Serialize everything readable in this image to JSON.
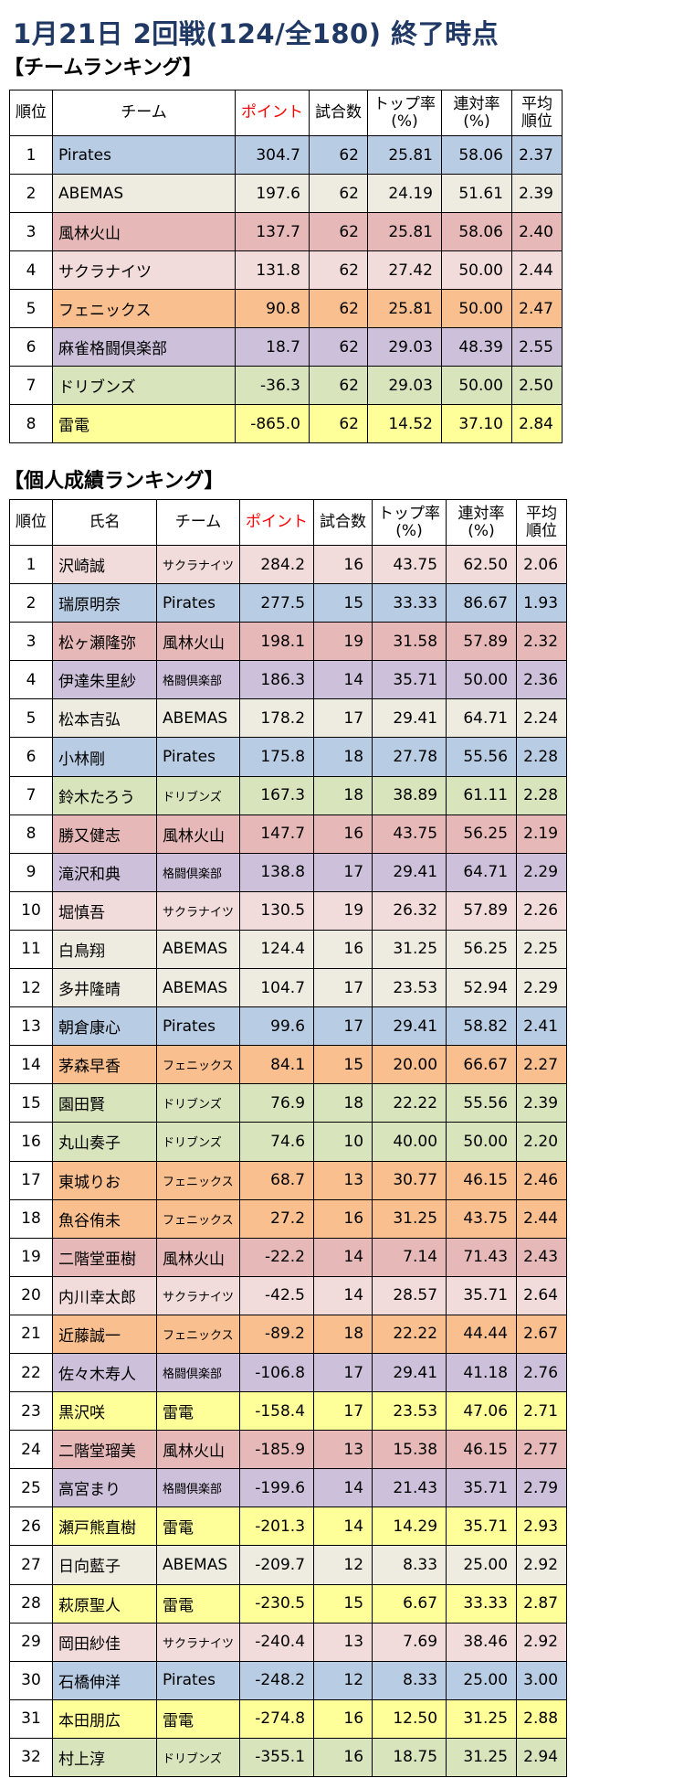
{
  "title": "1月21日 2回戦(124/全180) 終了時点",
  "team_section_label": "【チームランキング】",
  "player_section_label": "【個人成績ランキング】",
  "team_headers": [
    "順位",
    "チーム",
    "ポイント",
    "試合数",
    "トップ率\n(%)",
    "連対率\n(%)",
    "平均\n順位"
  ],
  "player_headers": [
    "順位",
    "氏名",
    "チーム",
    "ポイント",
    "試合数",
    "トップ率\n(%)",
    "連対率\n(%)",
    "平均\n順位"
  ],
  "team_colors": {
    "pirates": "#b8cce4",
    "abemas": "#eeece1",
    "furin": "#e6b8b7",
    "sakura": "#f2dcdb",
    "phoenix": "#fabf8f",
    "kakuto": "#ccc0da",
    "drib": "#d8e4bc",
    "raiden": "#ffff99"
  },
  "teams": [
    {
      "rank": "1",
      "team": "Pirates",
      "points": "304.7",
      "games": "62",
      "top": "25.81",
      "rentai": "58.06",
      "avg": "2.37",
      "color": "pirates"
    },
    {
      "rank": "2",
      "team": "ABEMAS",
      "points": "197.6",
      "games": "62",
      "top": "24.19",
      "rentai": "51.61",
      "avg": "2.39",
      "color": "abemas"
    },
    {
      "rank": "3",
      "team": "風林火山",
      "points": "137.7",
      "games": "62",
      "top": "25.81",
      "rentai": "58.06",
      "avg": "2.40",
      "color": "furin"
    },
    {
      "rank": "4",
      "team": "サクラナイツ",
      "points": "131.8",
      "games": "62",
      "top": "27.42",
      "rentai": "50.00",
      "avg": "2.44",
      "color": "sakura"
    },
    {
      "rank": "5",
      "team": "フェニックス",
      "points": "90.8",
      "games": "62",
      "top": "25.81",
      "rentai": "50.00",
      "avg": "2.47",
      "color": "phoenix"
    },
    {
      "rank": "6",
      "team": "麻雀格闘倶楽部",
      "points": "18.7",
      "games": "62",
      "top": "29.03",
      "rentai": "48.39",
      "avg": "2.55",
      "color": "kakuto"
    },
    {
      "rank": "7",
      "team": "ドリブンズ",
      "points": "-36.3",
      "games": "62",
      "top": "29.03",
      "rentai": "50.00",
      "avg": "2.50",
      "color": "drib"
    },
    {
      "rank": "8",
      "team": "雷電",
      "points": "-865.0",
      "games": "62",
      "top": "14.52",
      "rentai": "37.10",
      "avg": "2.84",
      "color": "raiden"
    }
  ],
  "players": [
    {
      "rank": "1",
      "name": "沢崎誠",
      "team": "サクラナイツ",
      "points": "284.2",
      "games": "16",
      "top": "43.75",
      "rentai": "62.50",
      "avg": "2.06",
      "color": "sakura"
    },
    {
      "rank": "2",
      "name": "瑞原明奈",
      "team": "Pirates",
      "points": "277.5",
      "games": "15",
      "top": "33.33",
      "rentai": "86.67",
      "avg": "1.93",
      "color": "pirates"
    },
    {
      "rank": "3",
      "name": "松ヶ瀬隆弥",
      "team": "風林火山",
      "points": "198.1",
      "games": "19",
      "top": "31.58",
      "rentai": "57.89",
      "avg": "2.32",
      "color": "furin"
    },
    {
      "rank": "4",
      "name": "伊達朱里紗",
      "team": "格闘倶楽部",
      "points": "186.3",
      "games": "14",
      "top": "35.71",
      "rentai": "50.00",
      "avg": "2.36",
      "color": "kakuto"
    },
    {
      "rank": "5",
      "name": "松本吉弘",
      "team": "ABEMAS",
      "points": "178.2",
      "games": "17",
      "top": "29.41",
      "rentai": "64.71",
      "avg": "2.24",
      "color": "abemas"
    },
    {
      "rank": "6",
      "name": "小林剛",
      "team": "Pirates",
      "points": "175.8",
      "games": "18",
      "top": "27.78",
      "rentai": "55.56",
      "avg": "2.28",
      "color": "pirates"
    },
    {
      "rank": "7",
      "name": "鈴木たろう",
      "team": "ドリブンズ",
      "points": "167.3",
      "games": "18",
      "top": "38.89",
      "rentai": "61.11",
      "avg": "2.28",
      "color": "drib"
    },
    {
      "rank": "8",
      "name": "勝又健志",
      "team": "風林火山",
      "points": "147.7",
      "games": "16",
      "top": "43.75",
      "rentai": "56.25",
      "avg": "2.19",
      "color": "furin"
    },
    {
      "rank": "9",
      "name": "滝沢和典",
      "team": "格闘倶楽部",
      "points": "138.8",
      "games": "17",
      "top": "29.41",
      "rentai": "64.71",
      "avg": "2.29",
      "color": "kakuto"
    },
    {
      "rank": "10",
      "name": "堀慎吾",
      "team": "サクラナイツ",
      "points": "130.5",
      "games": "19",
      "top": "26.32",
      "rentai": "57.89",
      "avg": "2.26",
      "color": "sakura"
    },
    {
      "rank": "11",
      "name": "白鳥翔",
      "team": "ABEMAS",
      "points": "124.4",
      "games": "16",
      "top": "31.25",
      "rentai": "56.25",
      "avg": "2.25",
      "color": "abemas"
    },
    {
      "rank": "12",
      "name": "多井隆晴",
      "team": "ABEMAS",
      "points": "104.7",
      "games": "17",
      "top": "23.53",
      "rentai": "52.94",
      "avg": "2.29",
      "color": "abemas"
    },
    {
      "rank": "13",
      "name": "朝倉康心",
      "team": "Pirates",
      "points": "99.6",
      "games": "17",
      "top": "29.41",
      "rentai": "58.82",
      "avg": "2.41",
      "color": "pirates"
    },
    {
      "rank": "14",
      "name": "茅森早香",
      "team": "フェニックス",
      "points": "84.1",
      "games": "15",
      "top": "20.00",
      "rentai": "66.67",
      "avg": "2.27",
      "color": "phoenix"
    },
    {
      "rank": "15",
      "name": "園田賢",
      "team": "ドリブンズ",
      "points": "76.9",
      "games": "18",
      "top": "22.22",
      "rentai": "55.56",
      "avg": "2.39",
      "color": "drib"
    },
    {
      "rank": "16",
      "name": "丸山奏子",
      "team": "ドリブンズ",
      "points": "74.6",
      "games": "10",
      "top": "40.00",
      "rentai": "50.00",
      "avg": "2.20",
      "color": "drib"
    },
    {
      "rank": "17",
      "name": "東城りお",
      "team": "フェニックス",
      "points": "68.7",
      "games": "13",
      "top": "30.77",
      "rentai": "46.15",
      "avg": "2.46",
      "color": "phoenix"
    },
    {
      "rank": "18",
      "name": "魚谷侑未",
      "team": "フェニックス",
      "points": "27.2",
      "games": "16",
      "top": "31.25",
      "rentai": "43.75",
      "avg": "2.44",
      "color": "phoenix"
    },
    {
      "rank": "19",
      "name": "二階堂亜樹",
      "team": "風林火山",
      "points": "-22.2",
      "games": "14",
      "top": "7.14",
      "rentai": "71.43",
      "avg": "2.43",
      "color": "furin"
    },
    {
      "rank": "20",
      "name": "内川幸太郎",
      "team": "サクラナイツ",
      "points": "-42.5",
      "games": "14",
      "top": "28.57",
      "rentai": "35.71",
      "avg": "2.64",
      "color": "sakura"
    },
    {
      "rank": "21",
      "name": "近藤誠一",
      "team": "フェニックス",
      "points": "-89.2",
      "games": "18",
      "top": "22.22",
      "rentai": "44.44",
      "avg": "2.67",
      "color": "phoenix"
    },
    {
      "rank": "22",
      "name": "佐々木寿人",
      "team": "格闘倶楽部",
      "points": "-106.8",
      "games": "17",
      "top": "29.41",
      "rentai": "41.18",
      "avg": "2.76",
      "color": "kakuto"
    },
    {
      "rank": "23",
      "name": "黒沢咲",
      "team": "雷電",
      "points": "-158.4",
      "games": "17",
      "top": "23.53",
      "rentai": "47.06",
      "avg": "2.71",
      "color": "raiden"
    },
    {
      "rank": "24",
      "name": "二階堂瑠美",
      "team": "風林火山",
      "points": "-185.9",
      "games": "13",
      "top": "15.38",
      "rentai": "46.15",
      "avg": "2.77",
      "color": "furin"
    },
    {
      "rank": "25",
      "name": "高宮まり",
      "team": "格闘倶楽部",
      "points": "-199.6",
      "games": "14",
      "top": "21.43",
      "rentai": "35.71",
      "avg": "2.79",
      "color": "kakuto"
    },
    {
      "rank": "26",
      "name": "瀬戸熊直樹",
      "team": "雷電",
      "points": "-201.3",
      "games": "14",
      "top": "14.29",
      "rentai": "35.71",
      "avg": "2.93",
      "color": "raiden"
    },
    {
      "rank": "27",
      "name": "日向藍子",
      "team": "ABEMAS",
      "points": "-209.7",
      "games": "12",
      "top": "8.33",
      "rentai": "25.00",
      "avg": "2.92",
      "color": "abemas"
    },
    {
      "rank": "28",
      "name": "萩原聖人",
      "team": "雷電",
      "points": "-230.5",
      "games": "15",
      "top": "6.67",
      "rentai": "33.33",
      "avg": "2.87",
      "color": "raiden"
    },
    {
      "rank": "29",
      "name": "岡田紗佳",
      "team": "サクラナイツ",
      "points": "-240.4",
      "games": "13",
      "top": "7.69",
      "rentai": "38.46",
      "avg": "2.92",
      "color": "sakura"
    },
    {
      "rank": "30",
      "name": "石橋伸洋",
      "team": "Pirates",
      "points": "-248.2",
      "games": "12",
      "top": "8.33",
      "rentai": "25.00",
      "avg": "3.00",
      "color": "pirates"
    },
    {
      "rank": "31",
      "name": "本田朋広",
      "team": "雷電",
      "points": "-274.8",
      "games": "16",
      "top": "12.50",
      "rentai": "31.25",
      "avg": "2.88",
      "color": "raiden"
    },
    {
      "rank": "32",
      "name": "村上淳",
      "team": "ドリブンズ",
      "points": "-355.1",
      "games": "16",
      "top": "18.75",
      "rentai": "31.25",
      "avg": "2.94",
      "color": "drib"
    }
  ]
}
